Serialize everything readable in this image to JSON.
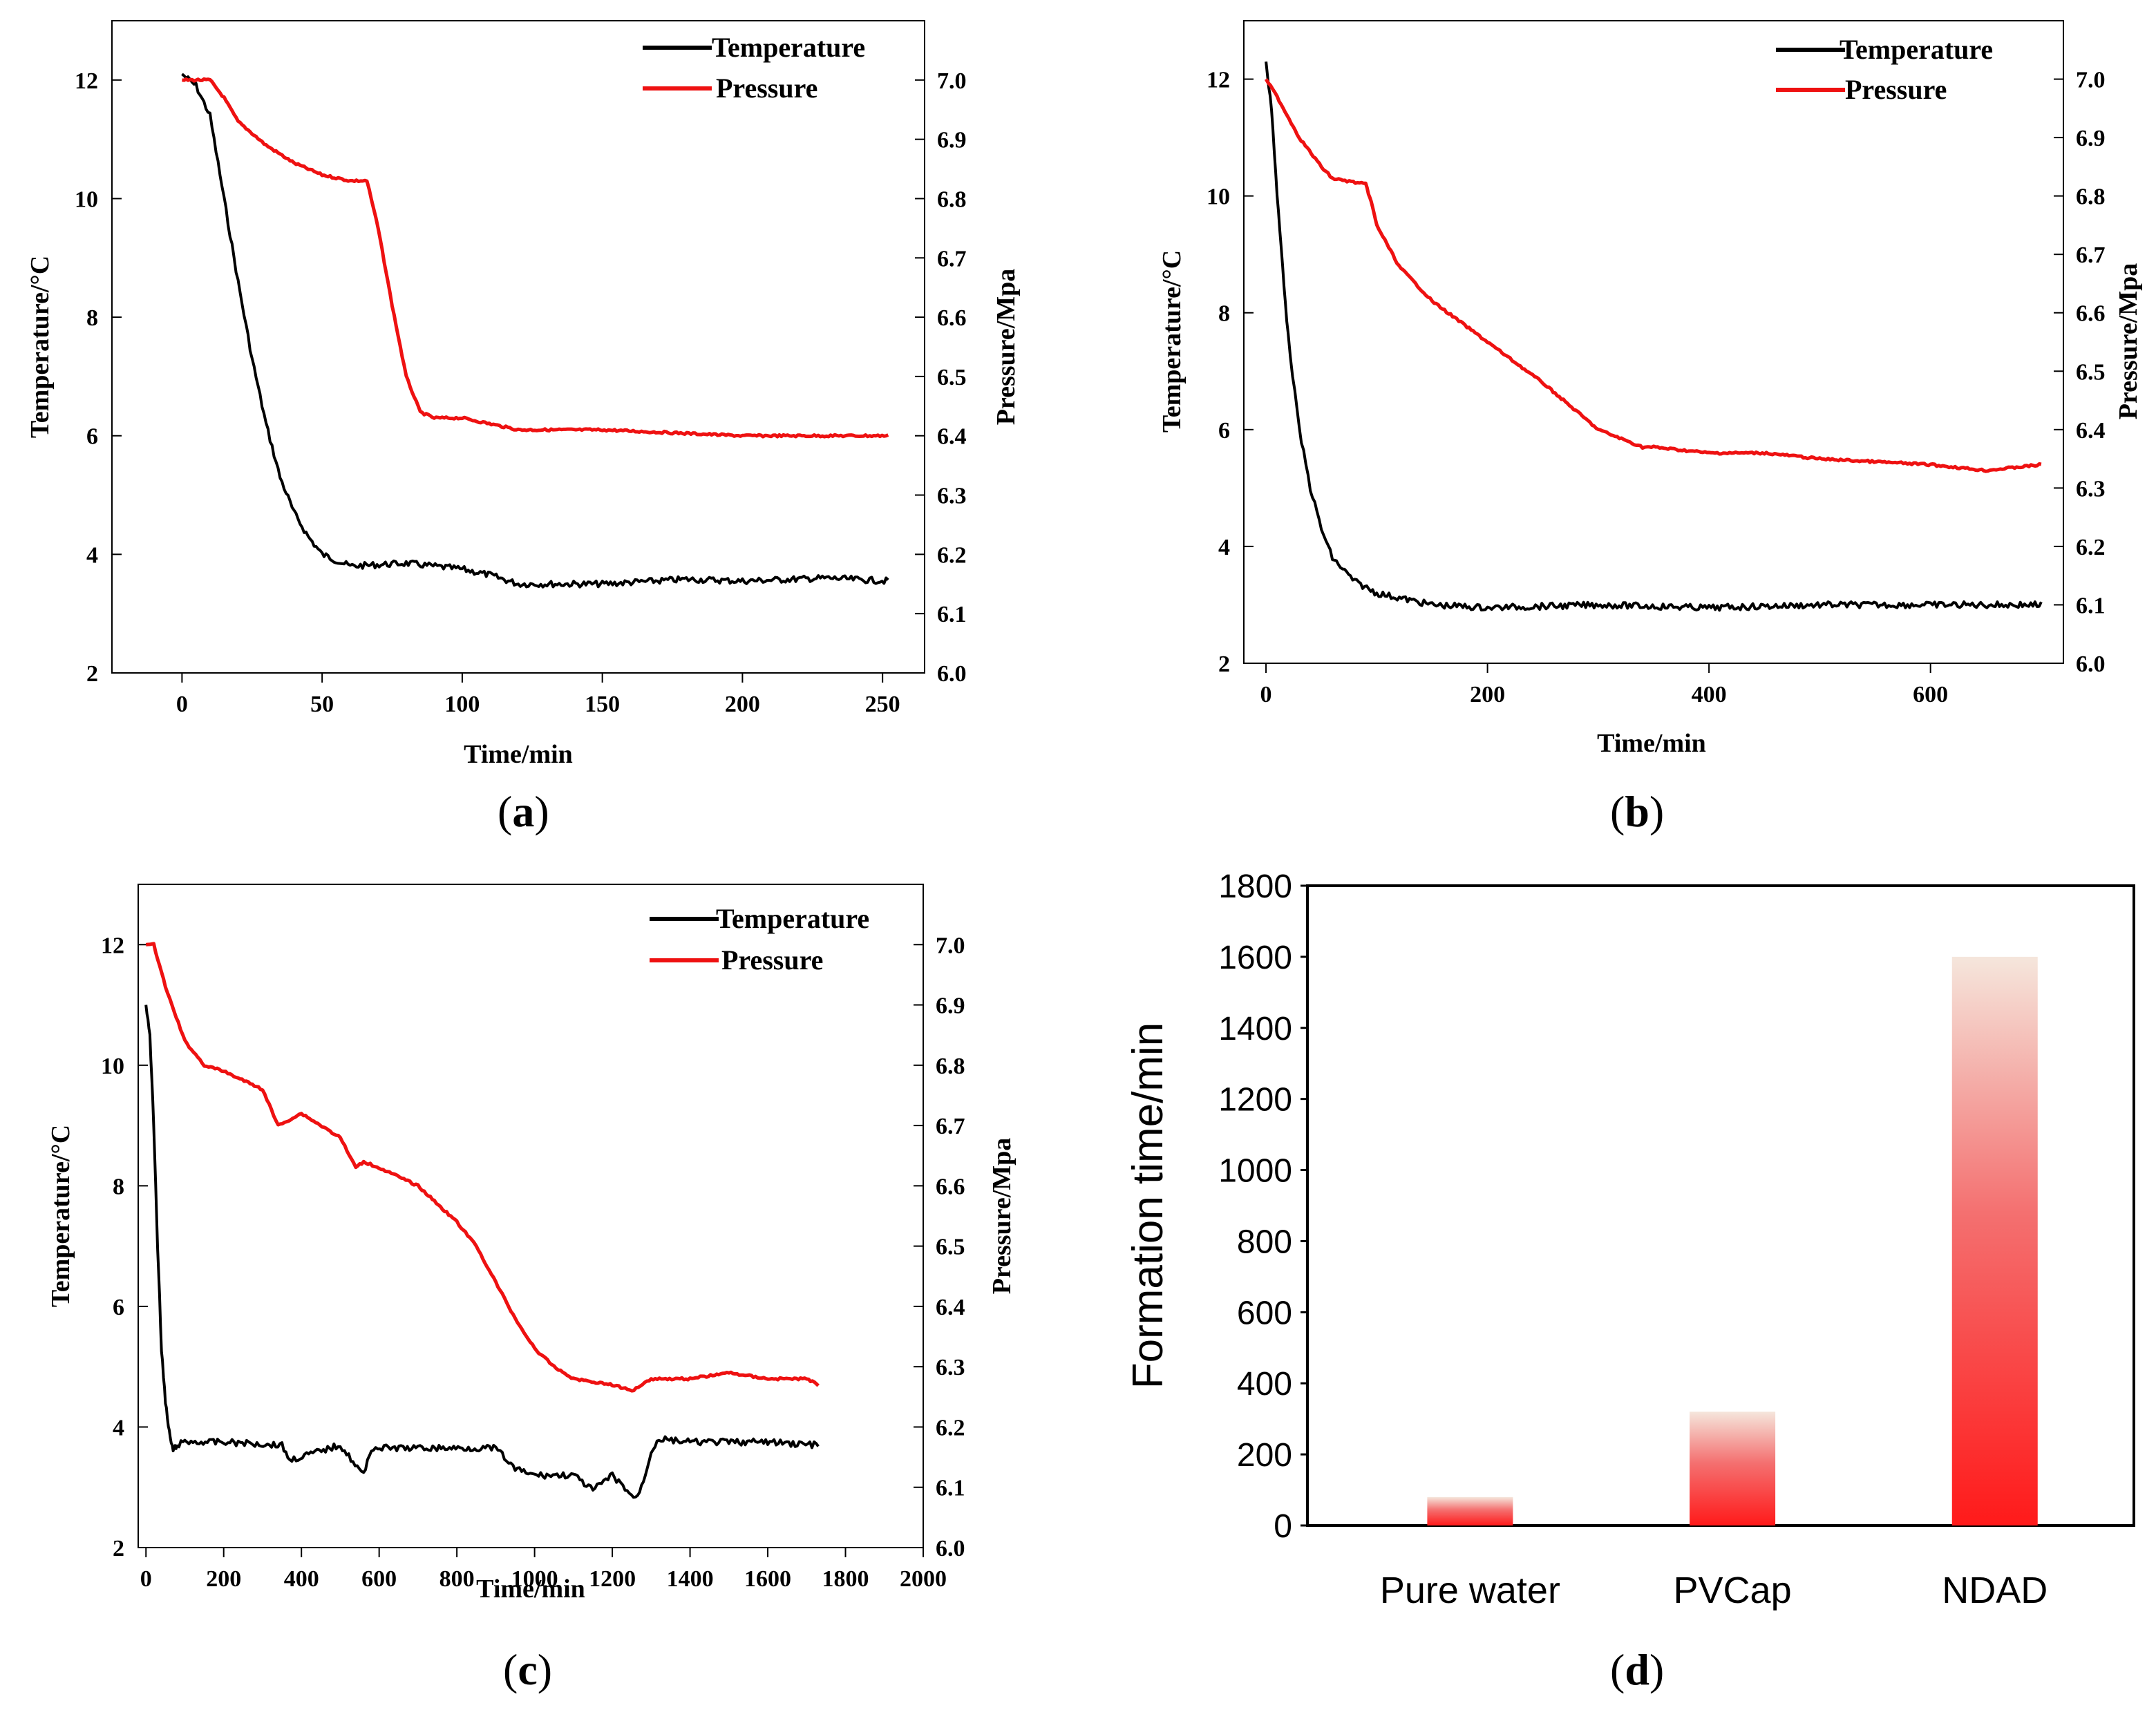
{
  "captions": {
    "a": {
      "open": "(",
      "letter": "a",
      "close": ")"
    },
    "b": {
      "open": "(",
      "letter": "b",
      "close": ")"
    },
    "c": {
      "open": "(",
      "letter": "c",
      "close": ")"
    },
    "d": {
      "open": "(",
      "letter": "d",
      "close": ")"
    }
  },
  "chart_data": [
    {
      "id": "a",
      "type": "line",
      "xlabel": "Time/min",
      "ylabel": "Temperature/°C",
      "y2label": "Pressure/Mpa",
      "xlim": [
        -25,
        265
      ],
      "xticks": [
        0,
        50,
        100,
        150,
        200,
        250
      ],
      "ylim": [
        2,
        13
      ],
      "yticks": [
        2,
        4,
        6,
        8,
        10,
        12
      ],
      "y2lim": [
        6.0,
        7.1
      ],
      "y2ticks": [
        6.0,
        6.1,
        6.2,
        6.3,
        6.4,
        6.5,
        6.6,
        6.7,
        6.8,
        6.9,
        7.0
      ],
      "legend": "top-right",
      "series": [
        {
          "name": "Temperature",
          "axis": "left",
          "color": "#000000",
          "x": [
            0,
            5,
            10,
            15,
            20,
            25,
            30,
            35,
            40,
            45,
            50,
            60,
            80,
            100,
            110,
            120,
            150,
            180,
            200,
            230,
            252
          ],
          "y": [
            12.1,
            11.9,
            11.4,
            10.0,
            8.6,
            7.3,
            6.2,
            5.3,
            4.7,
            4.3,
            4.0,
            3.8,
            3.85,
            3.75,
            3.65,
            3.5,
            3.5,
            3.58,
            3.55,
            3.6,
            3.55
          ]
        },
        {
          "name": "Pressure",
          "axis": "right",
          "color": "#ee1111",
          "x": [
            0,
            10,
            15,
            20,
            30,
            40,
            50,
            60,
            66,
            70,
            75,
            80,
            85,
            90,
            100,
            120,
            150,
            200,
            230,
            252
          ],
          "y": [
            7.0,
            7.0,
            6.97,
            6.93,
            6.89,
            6.86,
            6.84,
            6.83,
            6.83,
            6.75,
            6.62,
            6.5,
            6.44,
            6.43,
            6.43,
            6.41,
            6.41,
            6.4,
            6.4,
            6.4
          ]
        }
      ]
    },
    {
      "id": "b",
      "type": "line",
      "xlabel": "Time/min",
      "ylabel": "Temperature/°C",
      "y2label": "Pressure/Mpa",
      "xlim": [
        -20,
        720
      ],
      "xticks": [
        0,
        200,
        400,
        600
      ],
      "ylim": [
        2,
        13
      ],
      "yticks": [
        2,
        4,
        6,
        8,
        10,
        12
      ],
      "y2lim": [
        6.0,
        7.1
      ],
      "y2ticks": [
        6.0,
        6.1,
        6.2,
        6.3,
        6.4,
        6.5,
        6.6,
        6.7,
        6.8,
        6.9,
        7.0
      ],
      "legend": "top-right",
      "series": [
        {
          "name": "Temperature",
          "axis": "left",
          "color": "#000000",
          "x": [
            0,
            5,
            10,
            15,
            20,
            30,
            40,
            50,
            60,
            80,
            100,
            150,
            200,
            300,
            400,
            500,
            600,
            700
          ],
          "y": [
            12.3,
            11.5,
            10.0,
            8.8,
            7.6,
            6.0,
            5.0,
            4.3,
            3.8,
            3.4,
            3.2,
            3.0,
            2.95,
            3.0,
            2.95,
            3.0,
            3.0,
            3.0
          ]
        },
        {
          "name": "Pressure",
          "axis": "right",
          "color": "#ee1111",
          "x": [
            0,
            10,
            30,
            50,
            60,
            90,
            95,
            100,
            120,
            150,
            200,
            250,
            300,
            340,
            350,
            400,
            450,
            500,
            600,
            650,
            700
          ],
          "y": [
            7.0,
            6.97,
            6.9,
            6.85,
            6.83,
            6.82,
            6.79,
            6.75,
            6.68,
            6.62,
            6.55,
            6.48,
            6.4,
            6.37,
            6.37,
            6.36,
            6.36,
            6.35,
            6.34,
            6.33,
            6.34
          ]
        }
      ]
    },
    {
      "id": "c",
      "type": "line",
      "xlabel": "Time/min",
      "ylabel": "Temperature/°C",
      "y2label": "Pressure/Mpa",
      "xlim": [
        -20,
        2000
      ],
      "xticks": [
        0,
        200,
        400,
        600,
        800,
        1000,
        1200,
        1400,
        1600,
        1800,
        2000
      ],
      "ylim": [
        2,
        13
      ],
      "yticks": [
        2,
        4,
        6,
        8,
        10,
        12
      ],
      "y2lim": [
        6.0,
        7.1
      ],
      "y2ticks": [
        6.0,
        6.1,
        6.2,
        6.3,
        6.4,
        6.5,
        6.6,
        6.7,
        6.8,
        6.9,
        7.0
      ],
      "legend": "top-right",
      "series": [
        {
          "name": "Temperature",
          "axis": "left",
          "color": "#000000",
          "x": [
            0,
            10,
            20,
            30,
            40,
            50,
            60,
            70,
            80,
            100,
            200,
            350,
            370,
            500,
            560,
            580,
            700,
            900,
            950,
            1000,
            1100,
            1150,
            1200,
            1260,
            1280,
            1300,
            1320,
            1400,
            1500,
            1600,
            1730
          ],
          "y": [
            11.0,
            10.5,
            9.0,
            7.0,
            5.3,
            4.4,
            3.9,
            3.6,
            3.7,
            3.75,
            3.75,
            3.7,
            3.45,
            3.7,
            3.2,
            3.65,
            3.65,
            3.65,
            3.3,
            3.2,
            3.2,
            2.95,
            3.2,
            2.8,
            3.1,
            3.6,
            3.8,
            3.75,
            3.75,
            3.75,
            3.7
          ]
        },
        {
          "name": "Pressure",
          "axis": "right",
          "color": "#ee1111",
          "x": [
            0,
            20,
            50,
            100,
            150,
            200,
            300,
            340,
            400,
            500,
            540,
            560,
            600,
            700,
            800,
            850,
            900,
            950,
            1000,
            1050,
            1100,
            1200,
            1250,
            1300,
            1400,
            1500,
            1600,
            1700,
            1730
          ],
          "y": [
            7.0,
            7.0,
            6.93,
            6.84,
            6.8,
            6.79,
            6.76,
            6.7,
            6.72,
            6.68,
            6.63,
            6.64,
            6.63,
            6.6,
            6.54,
            6.5,
            6.44,
            6.38,
            6.33,
            6.3,
            6.28,
            6.27,
            6.26,
            6.28,
            6.28,
            6.29,
            6.28,
            6.28,
            6.27
          ]
        }
      ]
    },
    {
      "id": "d",
      "type": "bar",
      "categories": [
        "Pure water",
        "PVCap",
        "NDAD"
      ],
      "values": [
        80,
        320,
        1600
      ],
      "ylabel": "Formation time/min",
      "xlabel": "",
      "ylim": [
        0,
        1800
      ],
      "yticks": [
        0,
        200,
        400,
        600,
        800,
        1000,
        1200,
        1400,
        1600,
        1800
      ],
      "color": "#ff1a1a"
    }
  ]
}
